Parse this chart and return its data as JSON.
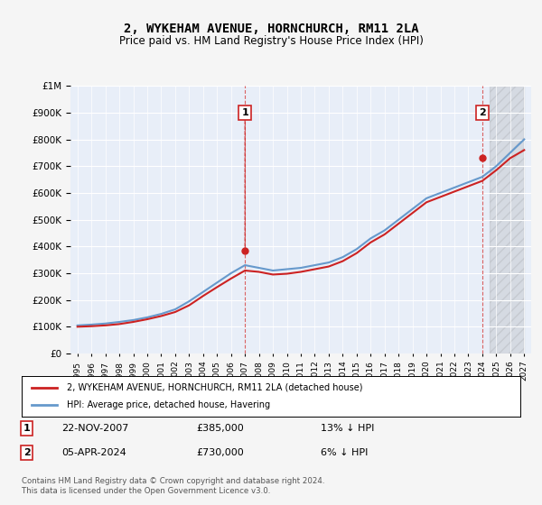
{
  "title": "2, WYKEHAM AVENUE, HORNCHURCH, RM11 2LA",
  "subtitle": "Price paid vs. HM Land Registry's House Price Index (HPI)",
  "ylabel_vals": [
    "£0",
    "£100K",
    "£200K",
    "£300K",
    "£400K",
    "£500K",
    "£600K",
    "£700K",
    "£800K",
    "£900K",
    "£1M"
  ],
  "ylim": [
    0,
    1000000
  ],
  "yticks": [
    0,
    100000,
    200000,
    300000,
    400000,
    500000,
    600000,
    700000,
    800000,
    900000,
    1000000
  ],
  "hpi_color": "#6699cc",
  "price_color": "#cc2222",
  "marker1_date_idx": 12.9,
  "marker1_price": 385000,
  "marker1_label": "1",
  "marker2_date_idx": 29.25,
  "marker2_price": 730000,
  "marker2_label": "2",
  "background_color": "#f0f4ff",
  "plot_bg_color": "#e8eef8",
  "legend_label1": "2, WYKEHAM AVENUE, HORNCHURCH, RM11 2LA (detached house)",
  "legend_label2": "HPI: Average price, detached house, Havering",
  "note1_num": "1",
  "note1_date": "22-NOV-2007",
  "note1_price": "£385,000",
  "note1_hpi": "13% ↓ HPI",
  "note2_num": "2",
  "note2_date": "05-APR-2024",
  "note2_price": "£730,000",
  "note2_hpi": "6% ↓ HPI",
  "footer": "Contains HM Land Registry data © Crown copyright and database right 2024.\nThis data is licensed under the Open Government Licence v3.0.",
  "hpi_data": [
    105000,
    108000,
    112000,
    118000,
    125000,
    135000,
    148000,
    165000,
    195000,
    230000,
    265000,
    300000,
    330000,
    320000,
    310000,
    315000,
    320000,
    330000,
    340000,
    360000,
    390000,
    430000,
    460000,
    500000,
    540000,
    580000,
    600000,
    620000,
    640000,
    660000,
    700000,
    750000,
    800000
  ],
  "price_data": [
    100000,
    102000,
    105000,
    110000,
    118000,
    128000,
    140000,
    155000,
    180000,
    215000,
    248000,
    280000,
    310000,
    305000,
    295000,
    298000,
    305000,
    315000,
    325000,
    345000,
    375000,
    415000,
    445000,
    485000,
    525000,
    565000,
    585000,
    605000,
    625000,
    645000,
    685000,
    730000,
    760000
  ],
  "x_years": [
    "1995",
    "1996",
    "1997",
    "1998",
    "1999",
    "2000",
    "2001",
    "2002",
    "2003",
    "2004",
    "2005",
    "2006",
    "2007",
    "2008",
    "2009",
    "2010",
    "2011",
    "2012",
    "2013",
    "2014",
    "2015",
    "2016",
    "2017",
    "2018",
    "2019",
    "2020",
    "2021",
    "2022",
    "2023",
    "2024",
    "2025",
    "2026",
    "2027"
  ]
}
